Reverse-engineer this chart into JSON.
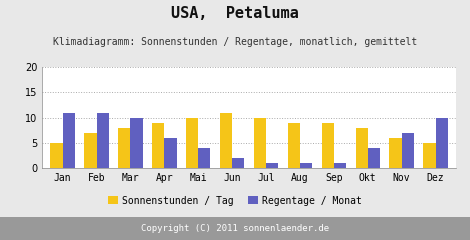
{
  "title": "USA,  Petaluma",
  "subtitle": "Klimadiagramm: Sonnenstunden / Regentage, monatlich, gemittelt",
  "months": [
    "Jan",
    "Feb",
    "Mar",
    "Apr",
    "Mai",
    "Jun",
    "Jul",
    "Aug",
    "Sep",
    "Okt",
    "Nov",
    "Dez"
  ],
  "sonnenstunden": [
    5,
    7,
    8,
    9,
    10,
    11,
    10,
    9,
    9,
    8,
    6,
    5
  ],
  "regentage": [
    11,
    11,
    10,
    6,
    4,
    2,
    1,
    1,
    1,
    4,
    7,
    10
  ],
  "sun_color": "#f5c518",
  "rain_color": "#6060c0",
  "bg_color": "#e8e8e8",
  "plot_bg_color": "#ffffff",
  "footer_bg": "#999999",
  "footer_text": "Copyright (C) 2011 sonnenlaender.de",
  "ylim": [
    0,
    20
  ],
  "yticks": [
    0,
    5,
    10,
    15,
    20
  ],
  "legend_sun": "Sonnenstunden / Tag",
  "legend_rain": "Regentage / Monat",
  "title_fontsize": 11,
  "subtitle_fontsize": 7,
  "axis_fontsize": 7,
  "legend_fontsize": 7,
  "footer_fontsize": 6.5
}
